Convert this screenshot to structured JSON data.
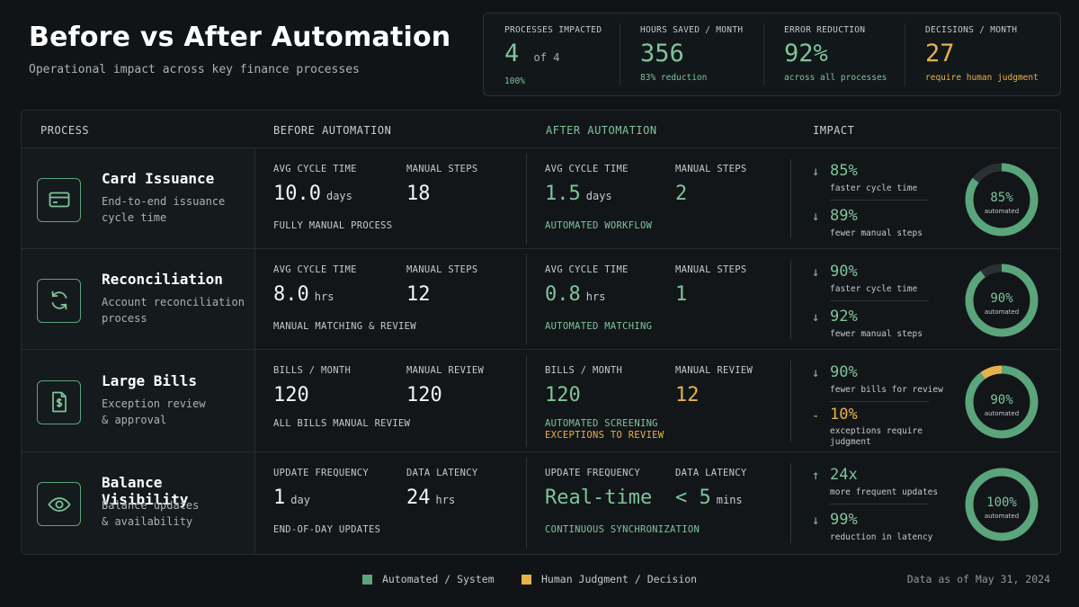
{
  "header": {
    "title": "Before vs After Automation",
    "subtitle": "Operational impact across key finance processes"
  },
  "kpis": [
    {
      "label": "PROCESSES IMPACTED",
      "value": "4",
      "value_suffix": "of 4",
      "sub": "100%"
    },
    {
      "label": "HOURS SAVED / MONTH",
      "value": "356",
      "value_suffix": "",
      "sub": "83% reduction"
    },
    {
      "label": "ERROR REDUCTION",
      "value": "92%",
      "value_suffix": "",
      "sub": "across all processes"
    },
    {
      "label": "DECISIONS / MONTH",
      "value": "27",
      "value_suffix": "",
      "sub": "require human judgment"
    }
  ],
  "columns": {
    "process": "PROCESS",
    "before": "BEFORE AUTOMATION",
    "after": "AFTER AUTOMATION",
    "impact": "IMPACT"
  },
  "rows": [
    {
      "icon": "credit-card-icon",
      "name": "Card Issuance",
      "desc1": "End-to-end issuance",
      "desc2": "cycle time",
      "before": {
        "m1_label": "AVG CYCLE TIME",
        "m1_value": "10.0",
        "m1_unit": "days",
        "m2_label": "MANUAL STEPS",
        "m2_value": "18",
        "m2_unit": "",
        "note1": "FULLY MANUAL PROCESS",
        "note2": ""
      },
      "after": {
        "m1_label": "AVG CYCLE TIME",
        "m1_value": "1.5",
        "m1_unit": "days",
        "m2_label": "MANUAL STEPS",
        "m2_value": "2",
        "m2_unit": "",
        "note1": "AUTOMATED WORKFLOW",
        "note2": ""
      },
      "impact": [
        {
          "arrow": "↓",
          "value": "85%",
          "label1": "faster cycle time",
          "label2": ""
        },
        {
          "arrow": "↓",
          "value": "89%",
          "label1": "fewer manual steps",
          "label2": ""
        }
      ],
      "donut": {
        "percent_label": "85%",
        "sublabel": "automated",
        "automated": 85,
        "human": 0
      }
    },
    {
      "icon": "refresh-icon",
      "name": "Reconciliation",
      "desc1": "Account reconciliation",
      "desc2": "process",
      "before": {
        "m1_label": "AVG CYCLE TIME",
        "m1_value": "8.0",
        "m1_unit": "hrs",
        "m2_label": "MANUAL STEPS",
        "m2_value": "12",
        "m2_unit": "",
        "note1": "MANUAL MATCHING & REVIEW",
        "note2": ""
      },
      "after": {
        "m1_label": "AVG CYCLE TIME",
        "m1_value": "0.8",
        "m1_unit": "hrs",
        "m2_label": "MANUAL STEPS",
        "m2_value": "1",
        "m2_unit": "",
        "note1": "AUTOMATED MATCHING",
        "note2": ""
      },
      "impact": [
        {
          "arrow": "↓",
          "value": "90%",
          "label1": "faster cycle time",
          "label2": ""
        },
        {
          "arrow": "↓",
          "value": "92%",
          "label1": "fewer manual steps",
          "label2": ""
        }
      ],
      "donut": {
        "percent_label": "90%",
        "sublabel": "automated",
        "automated": 90,
        "human": 0
      }
    },
    {
      "icon": "bill-dollar-icon",
      "name": "Large Bills",
      "desc1": "Exception review",
      "desc2": "& approval",
      "before": {
        "m1_label": "BILLS / MONTH",
        "m1_value": "120",
        "m1_unit": "",
        "m2_label": "MANUAL REVIEW",
        "m2_value": "120",
        "m2_unit": "",
        "note1": "ALL BILLS MANUAL REVIEW",
        "note2": ""
      },
      "after": {
        "m1_label": "BILLS / MONTH",
        "m1_value": "120",
        "m1_unit": "",
        "m2_label": "MANUAL REVIEW",
        "m2_value": "12",
        "m2_unit": "",
        "note1": "AUTOMATED SCREENING",
        "note2": "EXCEPTIONS TO REVIEW"
      },
      "impact": [
        {
          "arrow": "↓",
          "value": "90%",
          "label1": "fewer bills for review",
          "label2": ""
        },
        {
          "arrow": "-",
          "value": "10%",
          "label1": "exceptions require",
          "label2": "judgment"
        }
      ],
      "donut": {
        "percent_label": "90%",
        "sublabel": "automated",
        "automated": 90,
        "human": 10
      }
    },
    {
      "icon": "eye-icon",
      "name": "Balance Visibility",
      "desc1": "Balance updates",
      "desc2": "& availability",
      "before": {
        "m1_label": "UPDATE FREQUENCY",
        "m1_value": "1",
        "m1_unit": "day",
        "m2_label": "DATA LATENCY",
        "m2_value": "24",
        "m2_unit": "hrs",
        "note1": "END-OF-DAY UPDATES",
        "note2": ""
      },
      "after": {
        "m1_label": "UPDATE FREQUENCY",
        "m1_value": "Real-time",
        "m1_unit": "",
        "m2_label": "DATA LATENCY",
        "m2_value": "< 5",
        "m2_unit": "mins",
        "note1": "CONTINUOUS SYNCHRONIZATION",
        "note2": ""
      },
      "impact": [
        {
          "arrow": "↑",
          "value": "24x",
          "label1": "more frequent updates",
          "label2": ""
        },
        {
          "arrow": "↓",
          "value": "99%",
          "label1": "reduction in latency",
          "label2": ""
        }
      ],
      "donut": {
        "percent_label": "100%",
        "sublabel": "automated",
        "automated": 100,
        "human": 0
      }
    }
  ],
  "legend": [
    {
      "label": "Automated / System",
      "color": "#5aa57b"
    },
    {
      "label": "Human Judgment / Decision",
      "color": "#e7b14a"
    }
  ],
  "footer": {
    "as_of": "Data as of May 31, 2024"
  },
  "colors": {
    "green": "#7fc49a",
    "donut_green": "#5aa57b",
    "amber": "#e7b14a",
    "track": "#2a3135"
  }
}
